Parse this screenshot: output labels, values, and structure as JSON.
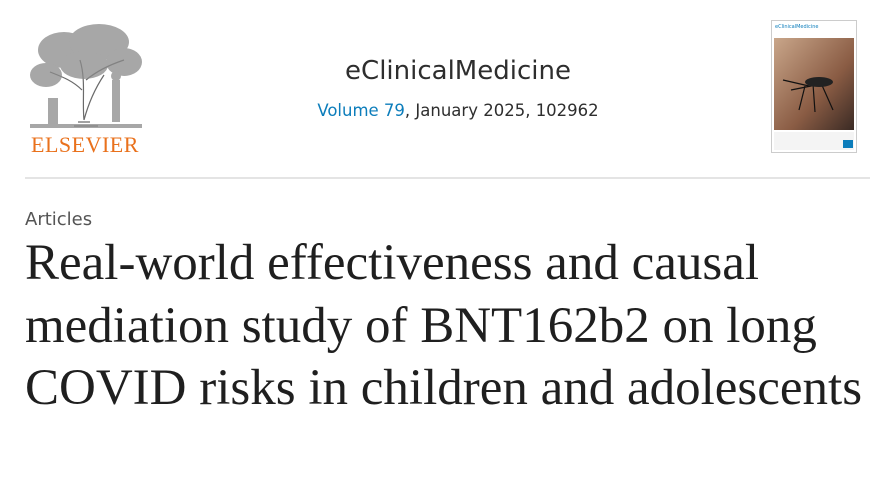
{
  "header": {
    "publisher": "ELSEVIER",
    "journal": "eClinicalMedicine",
    "volume": "Volume 79",
    "issue_info": ", January 2025, 102962",
    "cover_journal": "eClinicalMedicine"
  },
  "article": {
    "section": "Articles",
    "title": "Real-world effectiveness and causal mediation study of BNT162b2 on long COVID risks in children and adolescents"
  }
}
